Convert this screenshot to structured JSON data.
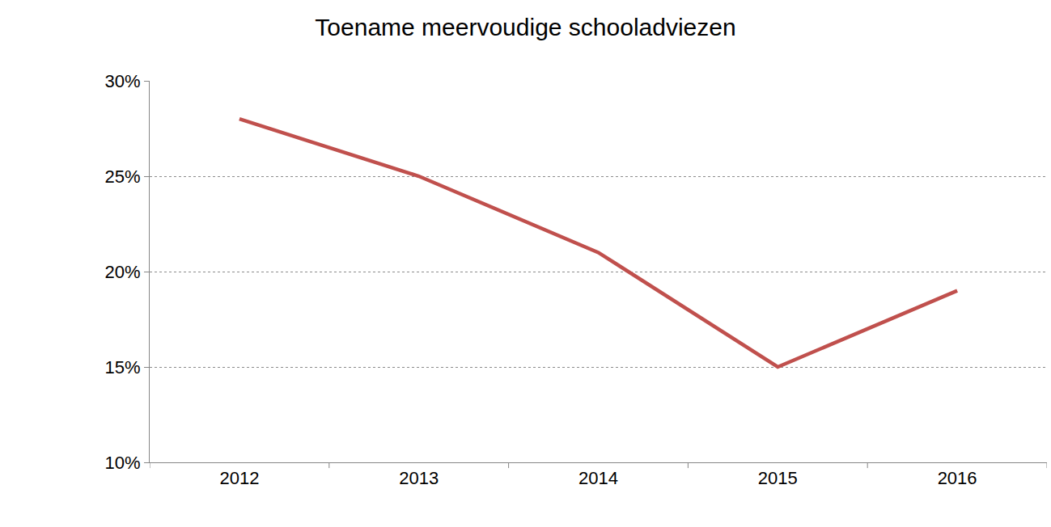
{
  "chart_data": {
    "type": "line",
    "title": "Toename meervoudige schooladviezen",
    "categories": [
      "2012",
      "2013",
      "2014",
      "2015",
      "2016"
    ],
    "values": [
      28,
      25,
      21,
      15,
      19
    ],
    "color": "#c0504d",
    "ylim": [
      10,
      30
    ],
    "yticks": [
      {
        "value": 10,
        "label": "10%"
      },
      {
        "value": 15,
        "label": "15%"
      },
      {
        "value": 20,
        "label": "20%"
      },
      {
        "value": 25,
        "label": "25%"
      },
      {
        "value": 30,
        "label": "30%"
      }
    ],
    "grid": true
  }
}
